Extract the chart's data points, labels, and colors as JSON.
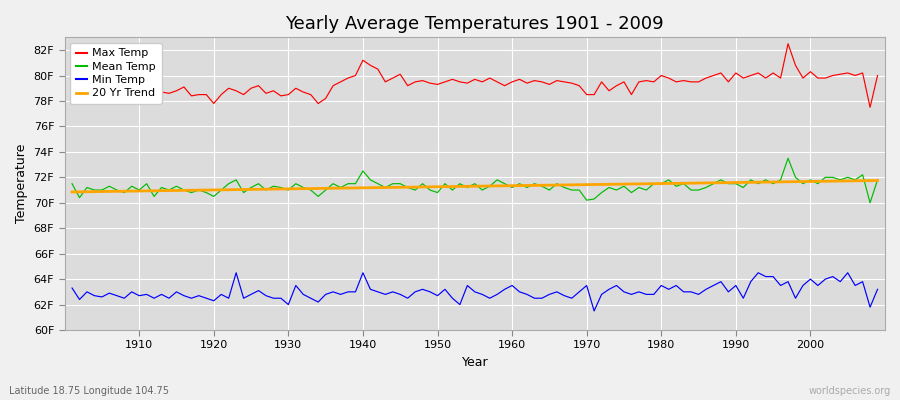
{
  "title": "Yearly Average Temperatures 1901 - 2009",
  "ylabel": "Temperature",
  "xlabel": "Year",
  "bottom_left": "Latitude 18.75 Longitude 104.75",
  "bottom_right": "worldspecies.org",
  "years": [
    1901,
    1902,
    1903,
    1904,
    1905,
    1906,
    1907,
    1908,
    1909,
    1910,
    1911,
    1912,
    1913,
    1914,
    1915,
    1916,
    1917,
    1918,
    1919,
    1920,
    1921,
    1922,
    1923,
    1924,
    1925,
    1926,
    1927,
    1928,
    1929,
    1930,
    1931,
    1932,
    1933,
    1934,
    1935,
    1936,
    1937,
    1938,
    1939,
    1940,
    1941,
    1942,
    1943,
    1944,
    1945,
    1946,
    1947,
    1948,
    1949,
    1950,
    1951,
    1952,
    1953,
    1954,
    1955,
    1956,
    1957,
    1958,
    1959,
    1960,
    1961,
    1962,
    1963,
    1964,
    1965,
    1966,
    1967,
    1968,
    1969,
    1970,
    1971,
    1972,
    1973,
    1974,
    1975,
    1976,
    1977,
    1978,
    1979,
    1980,
    1981,
    1982,
    1983,
    1984,
    1985,
    1986,
    1987,
    1988,
    1989,
    1990,
    1991,
    1992,
    1993,
    1994,
    1995,
    1996,
    1997,
    1998,
    1999,
    2000,
    2001,
    2002,
    2003,
    2004,
    2005,
    2006,
    2007,
    2008,
    2009
  ],
  "max_temp": [
    78.8,
    78.3,
    78.5,
    78.6,
    78.4,
    78.7,
    78.5,
    78.2,
    78.6,
    78.8,
    78.9,
    78.5,
    78.7,
    78.6,
    78.8,
    79.1,
    78.4,
    78.5,
    78.5,
    77.8,
    78.5,
    79.0,
    78.8,
    78.5,
    79.0,
    79.2,
    78.6,
    78.8,
    78.4,
    78.5,
    79.0,
    78.7,
    78.5,
    77.8,
    78.2,
    79.2,
    79.5,
    79.8,
    80.0,
    81.2,
    80.8,
    80.5,
    79.5,
    79.8,
    80.1,
    79.2,
    79.5,
    79.6,
    79.4,
    79.3,
    79.5,
    79.7,
    79.5,
    79.4,
    79.7,
    79.5,
    79.8,
    79.5,
    79.2,
    79.5,
    79.7,
    79.4,
    79.6,
    79.5,
    79.3,
    79.6,
    79.5,
    79.4,
    79.2,
    78.5,
    78.5,
    79.5,
    78.8,
    79.2,
    79.5,
    78.5,
    79.5,
    79.6,
    79.5,
    80.0,
    79.8,
    79.5,
    79.6,
    79.5,
    79.5,
    79.8,
    80.0,
    80.2,
    79.5,
    80.2,
    79.8,
    80.0,
    80.2,
    79.8,
    80.2,
    79.8,
    82.5,
    80.8,
    79.8,
    80.3,
    79.8,
    79.8,
    80.0,
    80.1,
    80.2,
    80.0,
    80.2,
    77.5,
    80.0
  ],
  "mean_temp": [
    71.5,
    70.4,
    71.2,
    71.0,
    71.0,
    71.3,
    71.0,
    70.8,
    71.3,
    71.0,
    71.5,
    70.5,
    71.2,
    71.0,
    71.3,
    71.0,
    70.8,
    71.0,
    70.8,
    70.5,
    71.0,
    71.5,
    71.8,
    70.8,
    71.2,
    71.5,
    71.0,
    71.3,
    71.2,
    71.0,
    71.5,
    71.2,
    71.0,
    70.5,
    71.0,
    71.5,
    71.2,
    71.5,
    71.5,
    72.5,
    71.8,
    71.5,
    71.2,
    71.5,
    71.5,
    71.2,
    71.0,
    71.5,
    71.0,
    70.8,
    71.5,
    71.0,
    71.5,
    71.2,
    71.5,
    71.0,
    71.3,
    71.8,
    71.5,
    71.2,
    71.5,
    71.2,
    71.5,
    71.3,
    71.0,
    71.5,
    71.2,
    71.0,
    71.0,
    70.2,
    70.3,
    70.8,
    71.2,
    71.0,
    71.3,
    70.8,
    71.2,
    71.0,
    71.5,
    71.5,
    71.8,
    71.3,
    71.5,
    71.0,
    71.0,
    71.2,
    71.5,
    71.8,
    71.5,
    71.5,
    71.2,
    71.8,
    71.5,
    71.8,
    71.5,
    71.8,
    73.5,
    72.0,
    71.5,
    71.8,
    71.5,
    72.0,
    72.0,
    71.8,
    72.0,
    71.8,
    72.2,
    70.0,
    71.8
  ],
  "min_temp": [
    63.3,
    62.4,
    63.0,
    62.7,
    62.6,
    62.9,
    62.7,
    62.5,
    63.0,
    62.7,
    62.8,
    62.5,
    62.8,
    62.5,
    63.0,
    62.7,
    62.5,
    62.7,
    62.5,
    62.3,
    62.8,
    62.5,
    64.5,
    62.5,
    62.8,
    63.1,
    62.7,
    62.5,
    62.5,
    62.0,
    63.5,
    62.8,
    62.5,
    62.2,
    62.8,
    63.0,
    62.8,
    63.0,
    63.0,
    64.5,
    63.2,
    63.0,
    62.8,
    63.0,
    62.8,
    62.5,
    63.0,
    63.2,
    63.0,
    62.7,
    63.2,
    62.5,
    62.0,
    63.5,
    63.0,
    62.8,
    62.5,
    62.8,
    63.2,
    63.5,
    63.0,
    62.8,
    62.5,
    62.5,
    62.8,
    63.0,
    62.7,
    62.5,
    63.0,
    63.5,
    61.5,
    62.8,
    63.2,
    63.5,
    63.0,
    62.8,
    63.0,
    62.8,
    62.8,
    63.5,
    63.2,
    63.5,
    63.0,
    63.0,
    62.8,
    63.2,
    63.5,
    63.8,
    63.0,
    63.5,
    62.5,
    63.8,
    64.5,
    64.2,
    64.2,
    63.5,
    63.8,
    62.5,
    63.5,
    64.0,
    63.5,
    64.0,
    64.2,
    63.8,
    64.5,
    63.5,
    63.8,
    61.8,
    63.2
  ],
  "bg_color": "#f0f0f0",
  "plot_bg_color": "#dcdcdc",
  "max_color": "#ff0000",
  "mean_color": "#00bb00",
  "min_color": "#0000ff",
  "trend_color": "#ffa500",
  "grid_color": "#ffffff",
  "ylim": [
    60,
    83
  ],
  "yticks": [
    60,
    62,
    64,
    66,
    68,
    70,
    72,
    74,
    76,
    78,
    80,
    82
  ],
  "ytick_labels": [
    "60F",
    "62F",
    "64F",
    "66F",
    "68F",
    "70F",
    "72F",
    "74F",
    "76F",
    "78F",
    "80F",
    "82F"
  ],
  "xticks": [
    1910,
    1920,
    1930,
    1940,
    1950,
    1960,
    1970,
    1980,
    1990,
    2000
  ],
  "title_fontsize": 13,
  "label_fontsize": 9,
  "tick_fontsize": 8,
  "legend_fontsize": 8
}
